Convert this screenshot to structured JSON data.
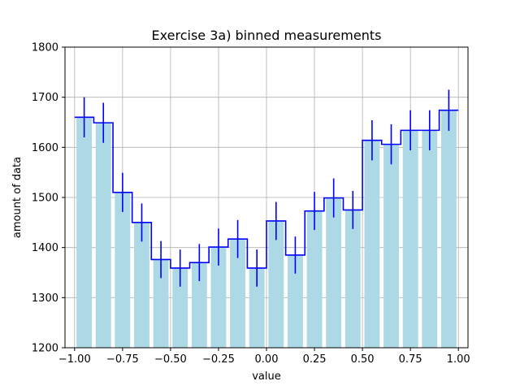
{
  "chart_data": {
    "type": "bar",
    "title": "Exercise 3a) binned measurements",
    "xlabel": "value",
    "ylabel": "amount of data",
    "xlim": [
      -1.05,
      1.05
    ],
    "ylim": [
      1200,
      1800
    ],
    "xticks": [
      -1.0,
      -0.75,
      -0.5,
      -0.25,
      0.0,
      0.25,
      0.5,
      0.75,
      1.0
    ],
    "xtick_labels": [
      "−1.00",
      "−0.75",
      "−0.50",
      "−0.25",
      "0.00",
      "0.25",
      "0.50",
      "0.75",
      "1.00"
    ],
    "yticks": [
      1200,
      1300,
      1400,
      1500,
      1600,
      1700,
      1800
    ],
    "grid": true,
    "bin_edges": [
      -1.0,
      -0.9,
      -0.8,
      -0.7,
      -0.6,
      -0.5,
      -0.4,
      -0.3,
      -0.2,
      -0.1,
      0.0,
      0.1,
      0.2,
      0.3,
      0.4,
      0.5,
      0.6,
      0.7,
      0.8,
      0.9,
      1.0
    ],
    "bar_width": 0.08,
    "values": [
      1660,
      1649,
      1510,
      1450,
      1376,
      1359,
      1370,
      1401,
      1417,
      1359,
      1453,
      1385,
      1473,
      1499,
      1475,
      1614,
      1606,
      1634,
      1634,
      1674
    ],
    "errors": [
      40,
      40,
      39,
      38,
      37,
      37,
      37,
      37,
      38,
      37,
      38,
      37,
      38,
      39,
      38,
      40,
      40,
      40,
      40,
      41
    ],
    "colors": {
      "bar": "#add8e6",
      "step": "#0000ff",
      "errorbar": "#0000ff",
      "grid": "#b0b0b0"
    }
  }
}
